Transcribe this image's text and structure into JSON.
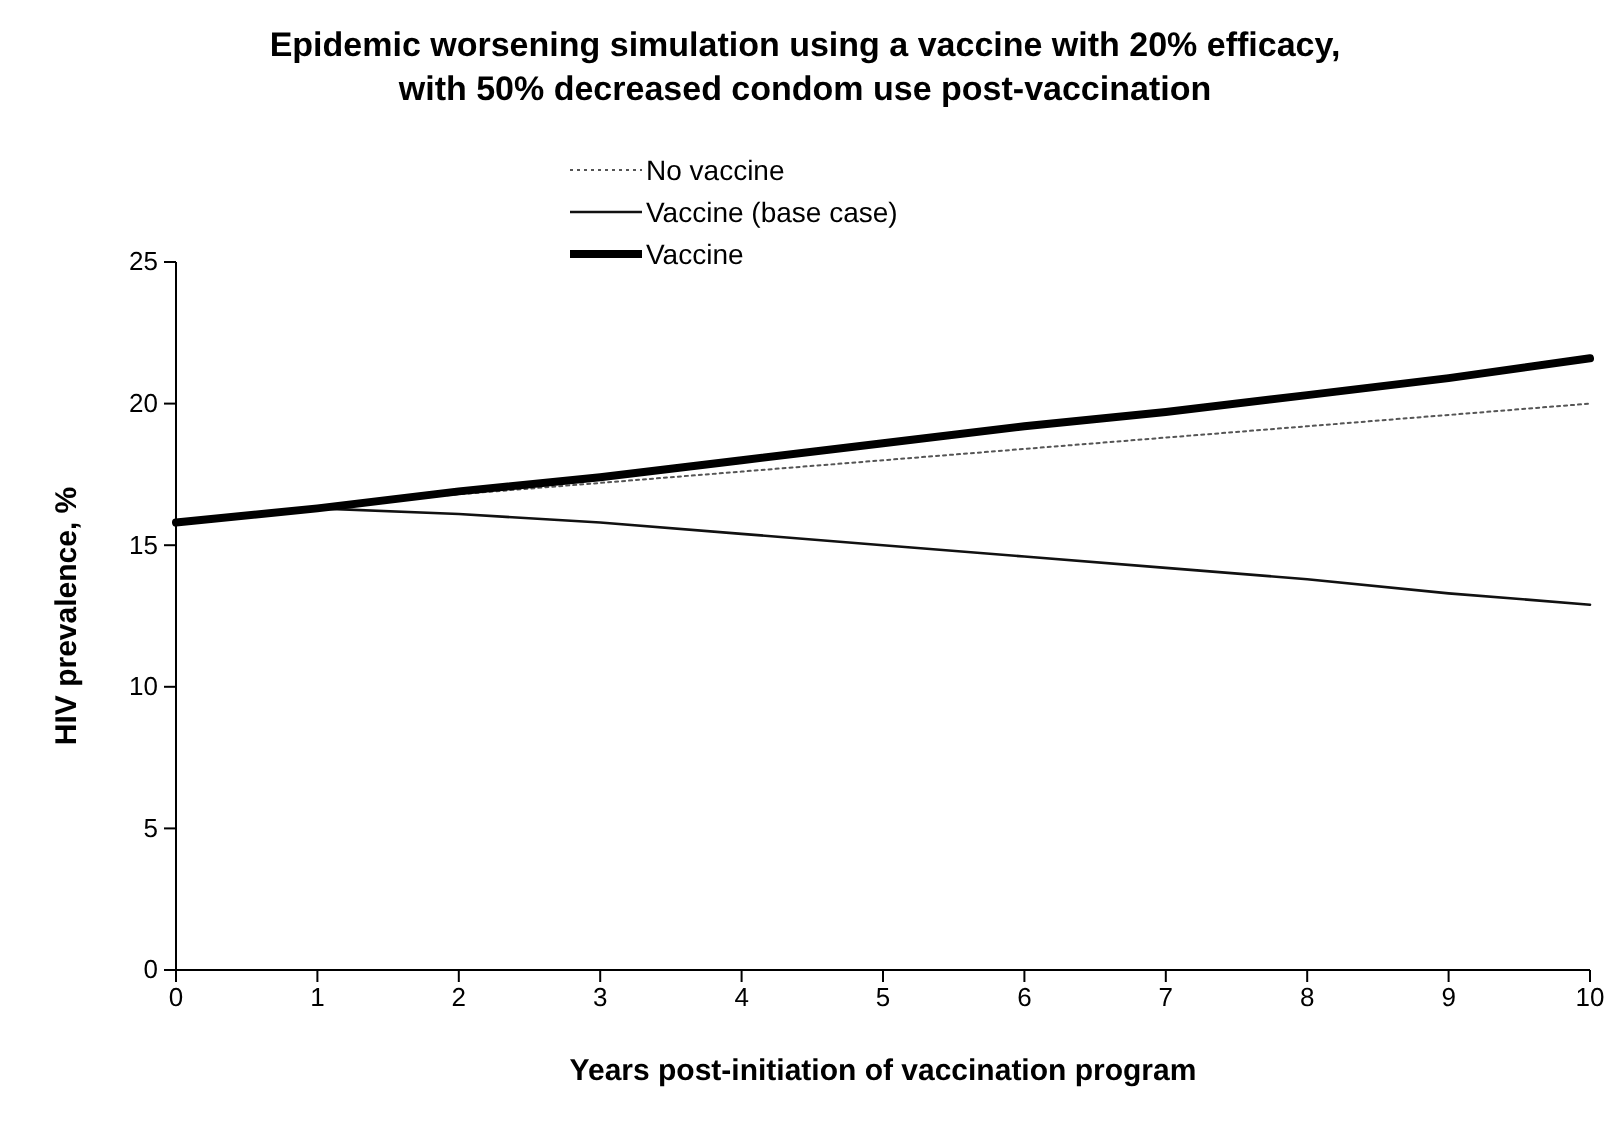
{
  "chart_data": {
    "type": "line",
    "title": "Epidemic worsening simulation using a vaccine with 20% efficacy,\nwith 50% decreased condom use post-vaccination",
    "xlabel": "Years post-initiation of vaccination program",
    "ylabel": "HIV prevalence, %",
    "x": [
      0,
      1,
      2,
      3,
      4,
      5,
      6,
      7,
      8,
      9,
      10
    ],
    "series": [
      {
        "name": "No vaccine",
        "color": "#555555",
        "line_style": "dotted",
        "values": [
          15.8,
          16.3,
          16.8,
          17.2,
          17.6,
          18.0,
          18.4,
          18.8,
          19.2,
          19.6,
          20.0
        ]
      },
      {
        "name": "Vaccine (base case)",
        "color": "#111111",
        "line_style": "solid",
        "values": [
          15.8,
          16.3,
          16.1,
          15.8,
          15.4,
          15.0,
          14.6,
          14.2,
          13.8,
          13.3,
          12.9
        ]
      },
      {
        "name": "Vaccine",
        "color": "#000000",
        "line_style": "solid",
        "values": [
          15.8,
          16.3,
          16.9,
          17.4,
          18.0,
          18.6,
          19.2,
          19.7,
          20.3,
          20.9,
          21.6
        ]
      }
    ],
    "xlim": [
      0,
      10
    ],
    "xticks": [
      0,
      1,
      2,
      3,
      4,
      5,
      6,
      7,
      8,
      9,
      10
    ],
    "ylim": [
      0,
      25
    ],
    "yticks": [
      0,
      5,
      10,
      15,
      20,
      25
    ],
    "grid": false,
    "legend": "top",
    "marker": "none"
  }
}
